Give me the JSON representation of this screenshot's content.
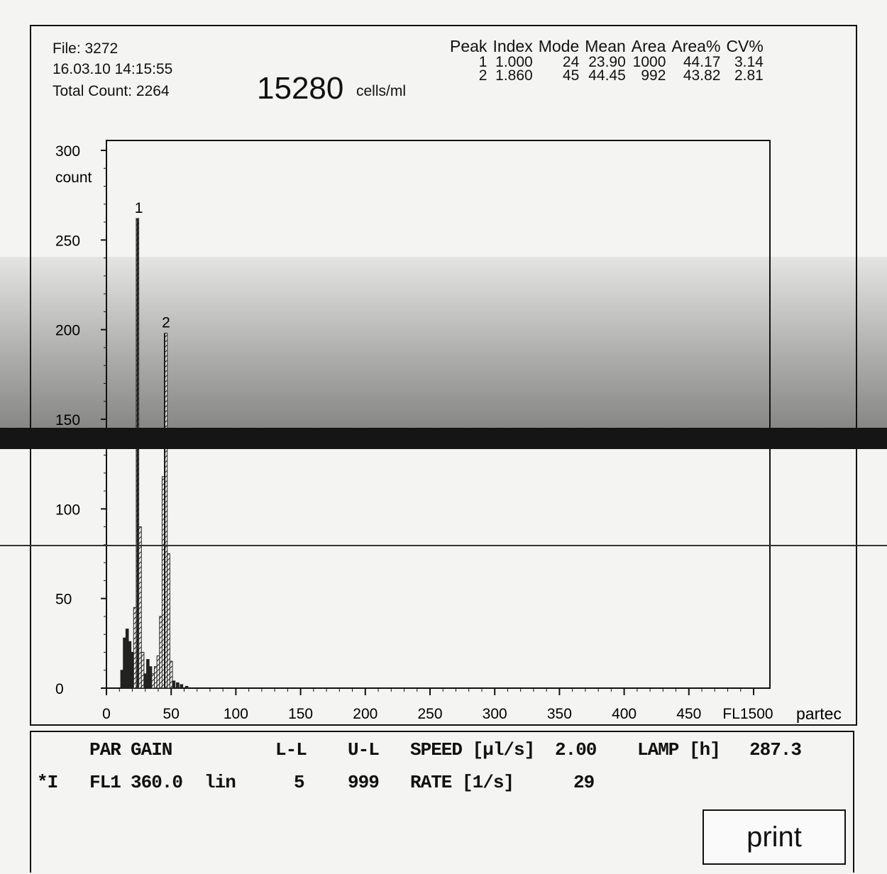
{
  "header": {
    "file": "File: 3272",
    "datetime": "16.03.10 14:15:55",
    "total_count": "Total Count: 2264",
    "concentration_value": "15280",
    "concentration_unit": "cells/ml"
  },
  "stats": {
    "columns": [
      "Peak",
      "Index",
      "Mode",
      "Mean",
      "Area",
      "Area%",
      "CV%"
    ],
    "rows": [
      [
        "1",
        "1.000",
        "24",
        "23.90",
        "1000",
        "44.17",
        "3.14"
      ],
      [
        "2",
        "1.860",
        "45",
        "44.45",
        "992",
        "43.82",
        "2.81"
      ]
    ]
  },
  "chart_data": {
    "type": "histogram",
    "title": "",
    "xlabel": "FL1",
    "ylabel": "count",
    "xlim": [
      0,
      500
    ],
    "ylim": [
      0,
      300
    ],
    "x_ticks": [
      "0",
      "50",
      "100",
      "150",
      "200",
      "250",
      "300",
      "350",
      "400",
      "450",
      "FL1500"
    ],
    "y_ticks": [
      "0",
      "50",
      "100",
      "150",
      "200",
      "250",
      "300"
    ],
    "peak_labels": [
      {
        "label": "1",
        "x": 24,
        "y": 262
      },
      {
        "label": "2",
        "x": 45,
        "y": 198
      }
    ],
    "bins": [
      {
        "x": 12,
        "y": 10
      },
      {
        "x": 14,
        "y": 28
      },
      {
        "x": 16,
        "y": 33
      },
      {
        "x": 18,
        "y": 26
      },
      {
        "x": 20,
        "y": 20
      },
      {
        "x": 22,
        "y": 45
      },
      {
        "x": 24,
        "y": 262
      },
      {
        "x": 26,
        "y": 90
      },
      {
        "x": 28,
        "y": 20
      },
      {
        "x": 30,
        "y": 8
      },
      {
        "x": 32,
        "y": 16
      },
      {
        "x": 34,
        "y": 12
      },
      {
        "x": 36,
        "y": 8
      },
      {
        "x": 38,
        "y": 12
      },
      {
        "x": 40,
        "y": 18
      },
      {
        "x": 42,
        "y": 40
      },
      {
        "x": 44,
        "y": 118
      },
      {
        "x": 46,
        "y": 198
      },
      {
        "x": 48,
        "y": 75
      },
      {
        "x": 50,
        "y": 15
      },
      {
        "x": 52,
        "y": 4
      },
      {
        "x": 55,
        "y": 3
      },
      {
        "x": 58,
        "y": 2
      },
      {
        "x": 62,
        "y": 1
      }
    ],
    "brand": "partec"
  },
  "settings": {
    "headers": {
      "par": "PAR",
      "gain": "GAIN",
      "ll": "L-L",
      "ul": "U-L",
      "speed_label": "SPEED [µl/s]",
      "speed_value": "2.00",
      "lamp_label": "LAMP [h]",
      "lamp_value": "287.3"
    },
    "row": {
      "marker": "*I",
      "par": "FL1",
      "gain": "360.0",
      "mode": "lin",
      "ll": "5",
      "ul": "999",
      "rate_label": "RATE [1/s]",
      "rate_value": "29"
    }
  },
  "print_label": "print",
  "colors": {
    "ink": "#111111",
    "paper": "#f4f4f2",
    "hatch": "#222222"
  }
}
